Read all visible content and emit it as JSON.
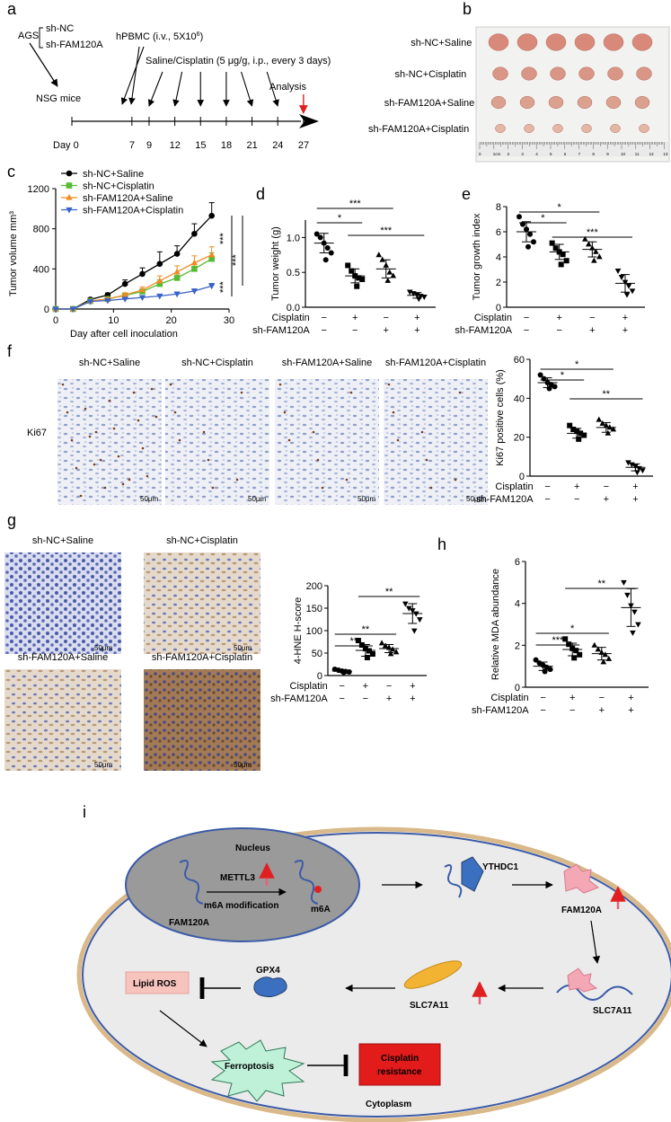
{
  "panels": {
    "a": {
      "label": "a",
      "cells": "AGS",
      "groups": [
        "sh-NC",
        "sh-FAM120A"
      ],
      "mice": "NSG mice",
      "hpbmc": "hPBMC (i.v., 5X10",
      "hpbmc_sup": "6",
      "hpbmc_end": ")",
      "treatment": "Saline/Cisplatin (5 μg/g, i.p., every 3 days)",
      "analysis": "Analysis",
      "day0": "Day 0",
      "days": [
        "7",
        "9",
        "12",
        "15",
        "18",
        "21",
        "24",
        "27"
      ],
      "colors": {
        "analysis_arrow": "#e02020"
      }
    },
    "b": {
      "label": "b",
      "rows": [
        "sh-NC+Saline",
        "sh-NC+Cisplatin",
        "sh-FAM120A+Saline",
        "sh-FAM120A+Cisplatin"
      ],
      "ruler": [
        "0",
        "1cm",
        "2",
        "3",
        "4",
        "5",
        "6",
        "7",
        "8",
        "9",
        "10",
        "11",
        "12",
        "13"
      ]
    },
    "c": {
      "label": "c",
      "sig": [
        "***",
        "***",
        "***"
      ]
    },
    "d": {
      "label": "d",
      "sig": [
        "*",
        "***",
        "***"
      ]
    },
    "e": {
      "label": "e",
      "sig": [
        "*",
        "*",
        "***"
      ]
    },
    "f": {
      "label": "f",
      "ki67": "Ki67",
      "images": [
        "sh-NC+Saline",
        "sh-NC+Cisplatin",
        "sh-FAM120A+Saline",
        "sh-FAM120A+Cisplatin"
      ],
      "scale": "50μm",
      "sig": [
        "*",
        "*",
        "**"
      ]
    },
    "g": {
      "label": "g",
      "images": [
        "sh-NC+Saline",
        "sh-NC+Cisplatin",
        "sh-FAM120A+Saline",
        "sh-FAM120A+Cisplatin"
      ],
      "scale": "50μm",
      "sig": [
        "**",
        "**",
        "**"
      ]
    },
    "h": {
      "label": "h",
      "sig": [
        "***",
        "*",
        "**"
      ]
    },
    "i": {
      "label": "i",
      "nucleus": "Nucleus",
      "mettl3": "METTL3",
      "fam120a": "FAM120A",
      "m6a_mod": "m6A modification",
      "m6a": "m6A",
      "ythdc1": "YTHDC1",
      "fam120a_protein": "FAM120A",
      "slc7a11_complex": "SLC7A11",
      "slc7a11": "SLC7A11",
      "gpx4": "GPX4",
      "lipid_ros": "Lipid ROS",
      "ferroptosis": "Ferroptosis",
      "cisplatin_resistance": [
        "Cisplatin",
        "resistance"
      ],
      "cytoplasm": "Cytoplasm",
      "colors": {
        "up_arrow": "#e8607a",
        "resistance_box": "#e21b1b",
        "ferroptosis": "#bff0d8",
        "nucleus": "#9a9a9a",
        "cell": "#ebebeb"
      }
    }
  },
  "treatment_rows": {
    "cisplatin_label": "Cisplatin",
    "shfam_label": "sh-FAM120A",
    "cisplatin": [
      "−",
      "+",
      "−",
      "+"
    ],
    "shfam": [
      "−",
      "−",
      "+",
      "+"
    ]
  },
  "chart_data": [
    {
      "id": "c",
      "type": "line",
      "ylabel": "Tumor volume mm³",
      "xlabel": "Day after cell inoculation",
      "xlim": [
        0,
        30
      ],
      "ylim": [
        0,
        1200
      ],
      "xticks": [
        "0",
        "10",
        "20",
        "30"
      ],
      "yticks": [
        "0",
        "400",
        "800",
        "1200"
      ],
      "legend": "top-left",
      "x": [
        0,
        3,
        6,
        9,
        12,
        15,
        18,
        21,
        24,
        27
      ],
      "series": [
        {
          "name": "sh-NC+Saline",
          "color": "#000000",
          "marker": "circle",
          "values": [
            0,
            0,
            95,
            140,
            250,
            350,
            450,
            550,
            750,
            930
          ],
          "err": [
            0,
            0,
            15,
            20,
            40,
            60,
            120,
            80,
            100,
            130
          ]
        },
        {
          "name": "sh-NC+Cisplatin",
          "color": "#55bb33",
          "marker": "square",
          "values": [
            0,
            0,
            80,
            100,
            135,
            175,
            250,
            310,
            400,
            500
          ],
          "err": [
            0,
            0,
            10,
            10,
            20,
            25,
            40,
            40,
            50,
            60
          ]
        },
        {
          "name": "sh-FAM120A+Saline",
          "color": "#f08a24",
          "marker": "triangle-up",
          "values": [
            0,
            0,
            80,
            100,
            140,
            190,
            280,
            370,
            460,
            540
          ],
          "err": [
            0,
            0,
            10,
            12,
            20,
            30,
            50,
            60,
            70,
            80
          ]
        },
        {
          "name": "sh-FAM120A+Cisplatin",
          "color": "#3a62c8",
          "marker": "triangle-down",
          "values": [
            0,
            0,
            75,
            85,
            100,
            115,
            130,
            150,
            180,
            230
          ],
          "err": [
            0,
            0,
            8,
            10,
            10,
            12,
            15,
            20,
            20,
            25
          ]
        }
      ]
    },
    {
      "id": "d",
      "type": "scatter",
      "ylabel": "Tumor weight (g)",
      "ylim": [
        0,
        1.25
      ],
      "yticks": [
        "0.0",
        "0.5",
        "1.0"
      ],
      "marker": "circle",
      "groups": [
        {
          "values": [
            1.05,
            1.0,
            0.92,
            0.85,
            0.78,
            0.68
          ],
          "mean": 0.92,
          "sd": 0.14,
          "marker": "circle"
        },
        {
          "values": [
            0.6,
            0.52,
            0.45,
            0.42,
            0.4,
            0.3
          ],
          "mean": 0.45,
          "sd": 0.1,
          "marker": "square"
        },
        {
          "values": [
            0.75,
            0.68,
            0.6,
            0.5,
            0.45,
            0.38
          ],
          "mean": 0.55,
          "sd": 0.13,
          "marker": "triangle-up"
        },
        {
          "values": [
            0.22,
            0.2,
            0.18,
            0.16,
            0.15,
            0.12
          ],
          "mean": 0.17,
          "sd": 0.04,
          "marker": "triangle-down"
        }
      ]
    },
    {
      "id": "e",
      "type": "scatter",
      "ylabel": "Tumor growth index",
      "ylim": [
        0,
        8
      ],
      "yticks": [
        "0",
        "2",
        "4",
        "6",
        "8"
      ],
      "groups": [
        {
          "values": [
            7.2,
            6.6,
            6.2,
            5.8,
            5.2,
            4.8
          ],
          "mean": 6.0,
          "sd": 0.8,
          "marker": "circle"
        },
        {
          "values": [
            5.1,
            4.7,
            4.4,
            4.2,
            3.7,
            3.4
          ],
          "mean": 4.4,
          "sd": 0.6,
          "marker": "square"
        },
        {
          "values": [
            5.4,
            5.0,
            4.7,
            4.4,
            4.0,
            3.7
          ],
          "mean": 4.6,
          "sd": 0.6,
          "marker": "triangle-up"
        },
        {
          "values": [
            2.9,
            2.4,
            2.0,
            1.7,
            1.3,
            1.0
          ],
          "mean": 1.9,
          "sd": 0.7,
          "marker": "triangle-down"
        }
      ]
    },
    {
      "id": "f",
      "type": "scatter",
      "ylabel": "Ki67 positive cells (%)",
      "ylim": [
        0,
        60
      ],
      "yticks": [
        "0",
        "20",
        "40",
        "60"
      ],
      "groups": [
        {
          "values": [
            52,
            50,
            48,
            47,
            46,
            45
          ],
          "mean": 48,
          "sd": 2.5,
          "marker": "circle"
        },
        {
          "values": [
            26,
            24,
            23,
            22,
            21,
            19
          ],
          "mean": 22,
          "sd": 2.5,
          "marker": "square"
        },
        {
          "values": [
            29,
            27,
            26,
            25,
            24,
            22
          ],
          "mean": 25,
          "sd": 2.5,
          "marker": "triangle-up"
        },
        {
          "values": [
            7,
            6,
            5,
            4,
            3,
            2
          ],
          "mean": 4.5,
          "sd": 1.8,
          "marker": "triangle-down"
        }
      ]
    },
    {
      "id": "g",
      "type": "scatter",
      "ylabel": "4-HNE H-score",
      "ylim": [
        0,
        200
      ],
      "yticks": [
        "0",
        "50",
        "100",
        "150",
        "200"
      ],
      "groups": [
        {
          "values": [
            14,
            12,
            10,
            9,
            8,
            7
          ],
          "mean": 10,
          "sd": 3,
          "marker": "circle"
        },
        {
          "values": [
            78,
            68,
            60,
            55,
            48,
            40
          ],
          "mean": 56,
          "sd": 13,
          "marker": "square"
        },
        {
          "values": [
            72,
            66,
            62,
            58,
            52,
            48
          ],
          "mean": 60,
          "sd": 9,
          "marker": "triangle-up"
        },
        {
          "values": [
            160,
            150,
            145,
            138,
            125,
            100
          ],
          "mean": 138,
          "sd": 22,
          "marker": "triangle-down"
        }
      ]
    },
    {
      "id": "h",
      "type": "scatter",
      "ylabel": "Relative MDA abundance",
      "ylim": [
        0,
        6
      ],
      "yticks": [
        "0",
        "2",
        "4",
        "6"
      ],
      "groups": [
        {
          "values": [
            1.3,
            1.15,
            1.05,
            0.95,
            0.85,
            0.75
          ],
          "mean": 1.0,
          "sd": 0.2,
          "marker": "circle"
        },
        {
          "values": [
            2.3,
            2.05,
            1.85,
            1.75,
            1.55,
            1.4
          ],
          "mean": 1.8,
          "sd": 0.3,
          "marker": "square"
        },
        {
          "values": [
            2.0,
            1.8,
            1.65,
            1.55,
            1.35,
            1.2
          ],
          "mean": 1.6,
          "sd": 0.3,
          "marker": "triangle-up"
        },
        {
          "values": [
            5.0,
            4.4,
            3.9,
            3.6,
            3.0,
            2.6
          ],
          "mean": 3.8,
          "sd": 0.9,
          "marker": "triangle-down"
        }
      ]
    }
  ]
}
